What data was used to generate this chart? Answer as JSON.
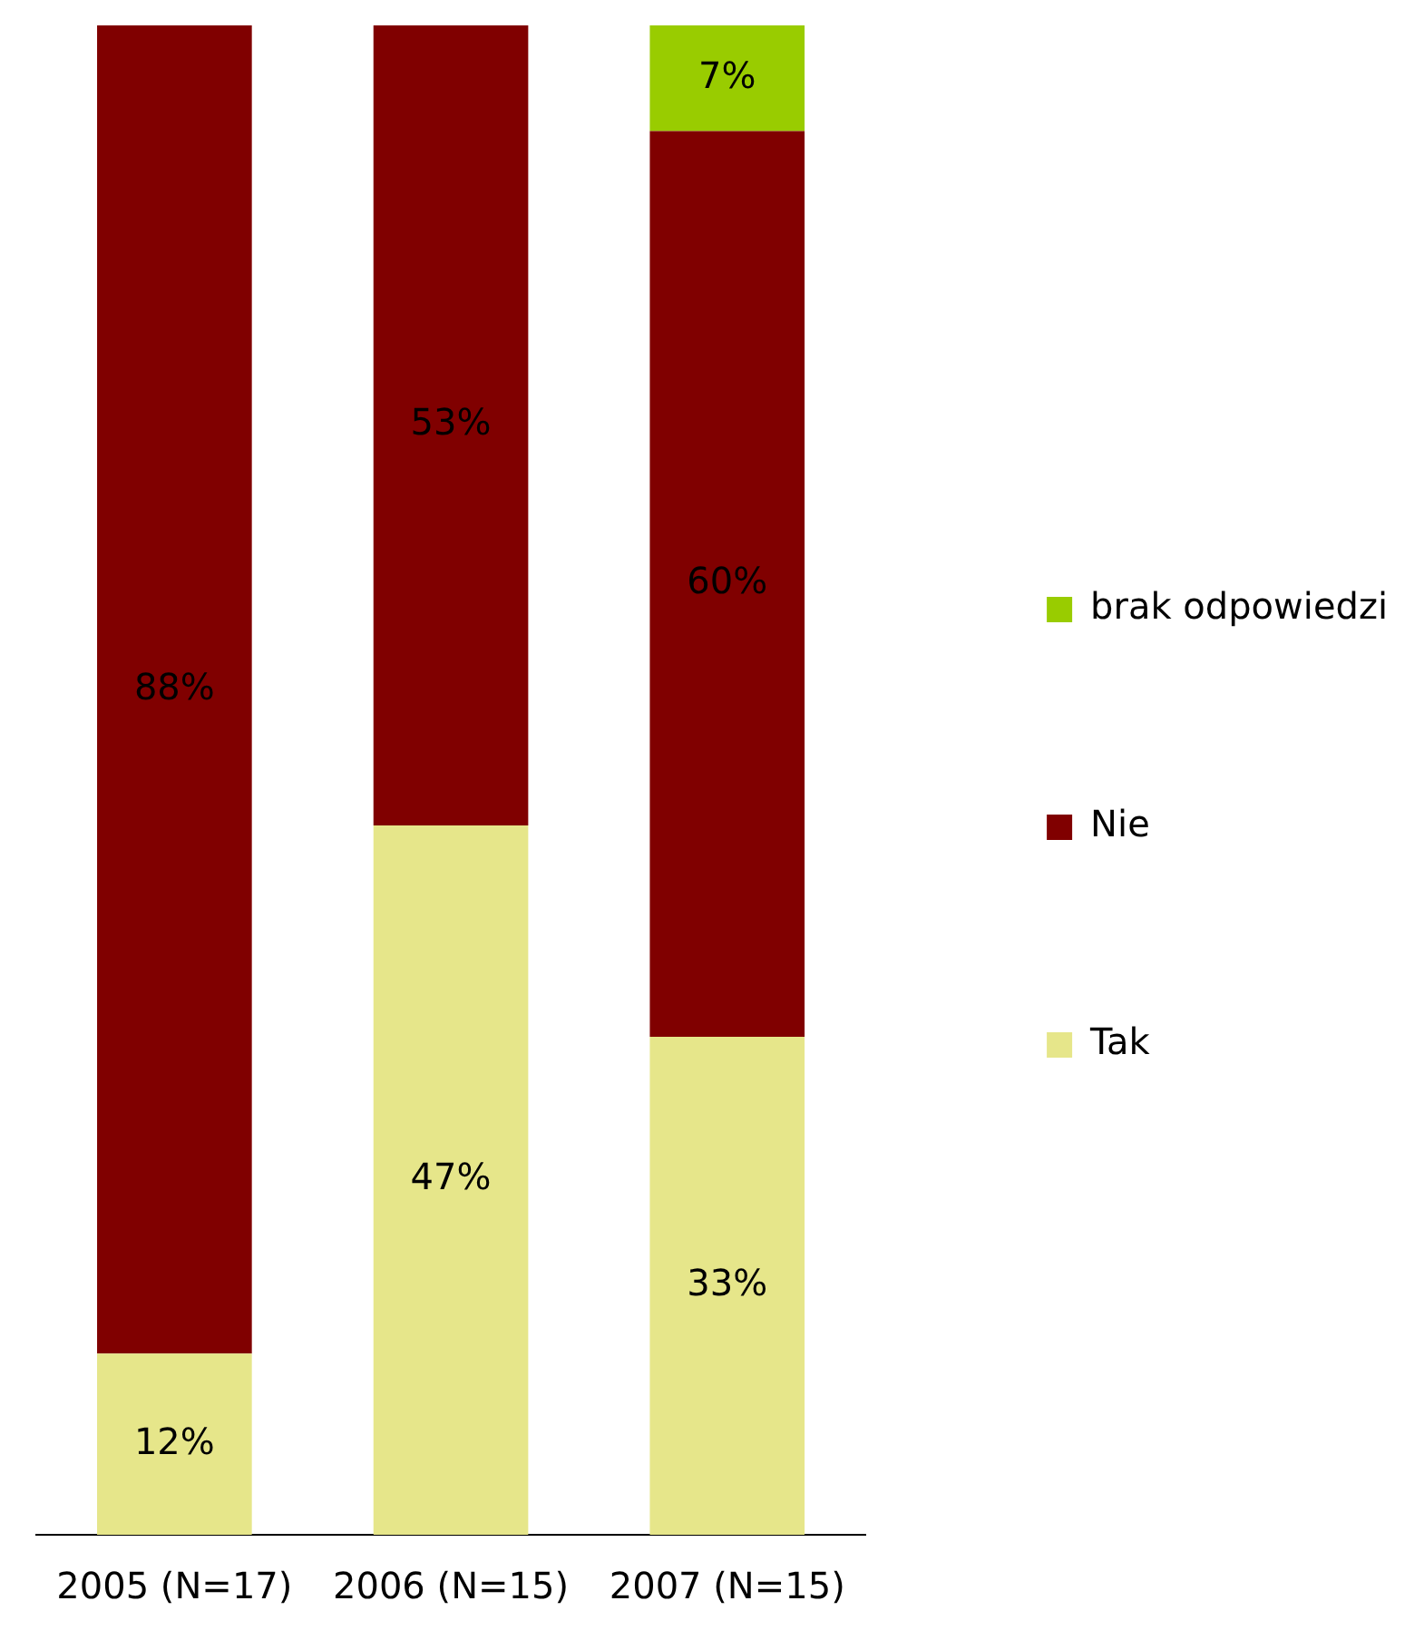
{
  "chart_data": {
    "type": "bar",
    "stacked": true,
    "categories": [
      "2005 (N=17)",
      "2006 (N=15)",
      "2007 (N=15)"
    ],
    "series": [
      {
        "name": "Tak",
        "color": "#e6e68a",
        "values": [
          12,
          47,
          33
        ],
        "value_labels": [
          "12%",
          "47%",
          "33%"
        ]
      },
      {
        "name": "Nie",
        "color": "#800000",
        "values": [
          88,
          53,
          60
        ],
        "value_labels": [
          "88%",
          "53%",
          "60%"
        ]
      },
      {
        "name": "brak odpowiedzi",
        "color": "#99cc00",
        "values": [
          null,
          null,
          7
        ],
        "value_labels": [
          null,
          null,
          "7%"
        ]
      }
    ],
    "legend": "right",
    "grid": false
  }
}
